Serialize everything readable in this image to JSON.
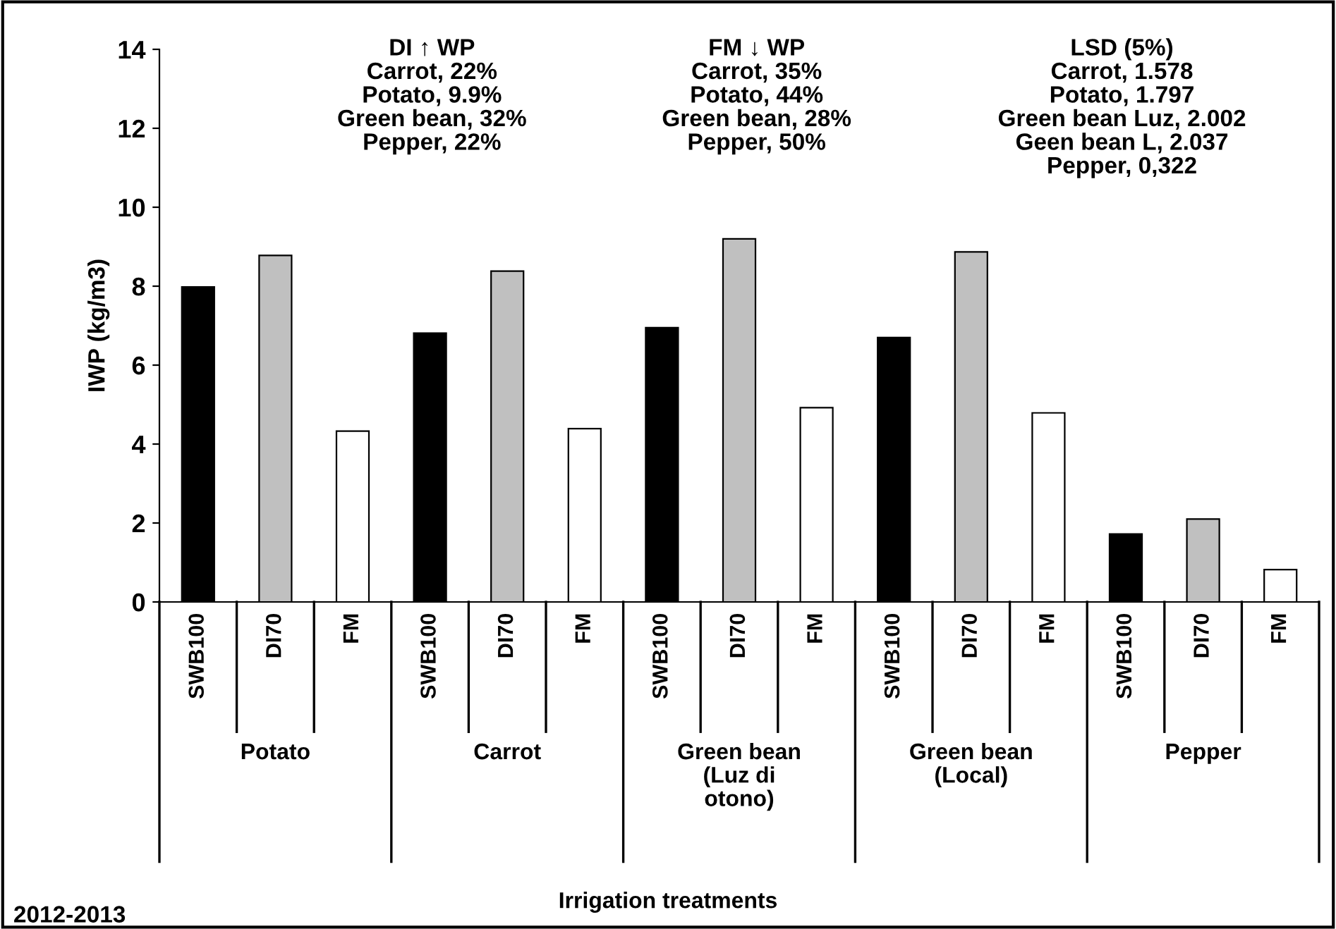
{
  "chart_data": {
    "type": "bar",
    "ylabel": "IWP (kg/m3)",
    "categories": [
      "SWB100",
      "DI70",
      "FM",
      "SWB100",
      "DI70",
      "FM",
      "SWB100",
      "DI70",
      "FM",
      "SWB100",
      "DI70",
      "FM",
      "SWB100",
      "DI70",
      "FM"
    ],
    "values": [
      7.98,
      8.78,
      4.33,
      6.81,
      8.38,
      4.39,
      6.95,
      9.2,
      4.92,
      6.7,
      8.87,
      4.79,
      1.72,
      2.1,
      0.82
    ],
    "colors": [
      "#000000",
      "#c0c0c0",
      "#ffffff",
      "#000000",
      "#c0c0c0",
      "#ffffff",
      "#000000",
      "#c0c0c0",
      "#ffffff",
      "#000000",
      "#c0c0c0",
      "#ffffff",
      "#000000",
      "#c0c0c0",
      "#ffffff"
    ],
    "ylim": [
      0,
      14
    ],
    "yticks": [
      0,
      2,
      4,
      6,
      8,
      10,
      12,
      14
    ],
    "grid": false,
    "legend": false,
    "annotations": [
      "DI ↑ WP\nCarrot, 22%\nPotato, 9.9%\nGreen bean, 32%\nPepper, 22%",
      "FM ↓ WP\nCarrot, 35%\nPotato, 44%\nGreen bean, 28%\nPepper, 50%",
      "LSD (5%)\nCarrot, 1.578\nPotato, 1.797\nGreen bean Luz, 2.002\nGeen bean L, 2.037\nPepper, 0,322",
      "Potato",
      "Carrot",
      "Green bean\n(Luz di\notono)",
      "Green bean\n(Local)",
      "Pepper",
      "Irrigation treatments",
      "2012-2013"
    ]
  }
}
